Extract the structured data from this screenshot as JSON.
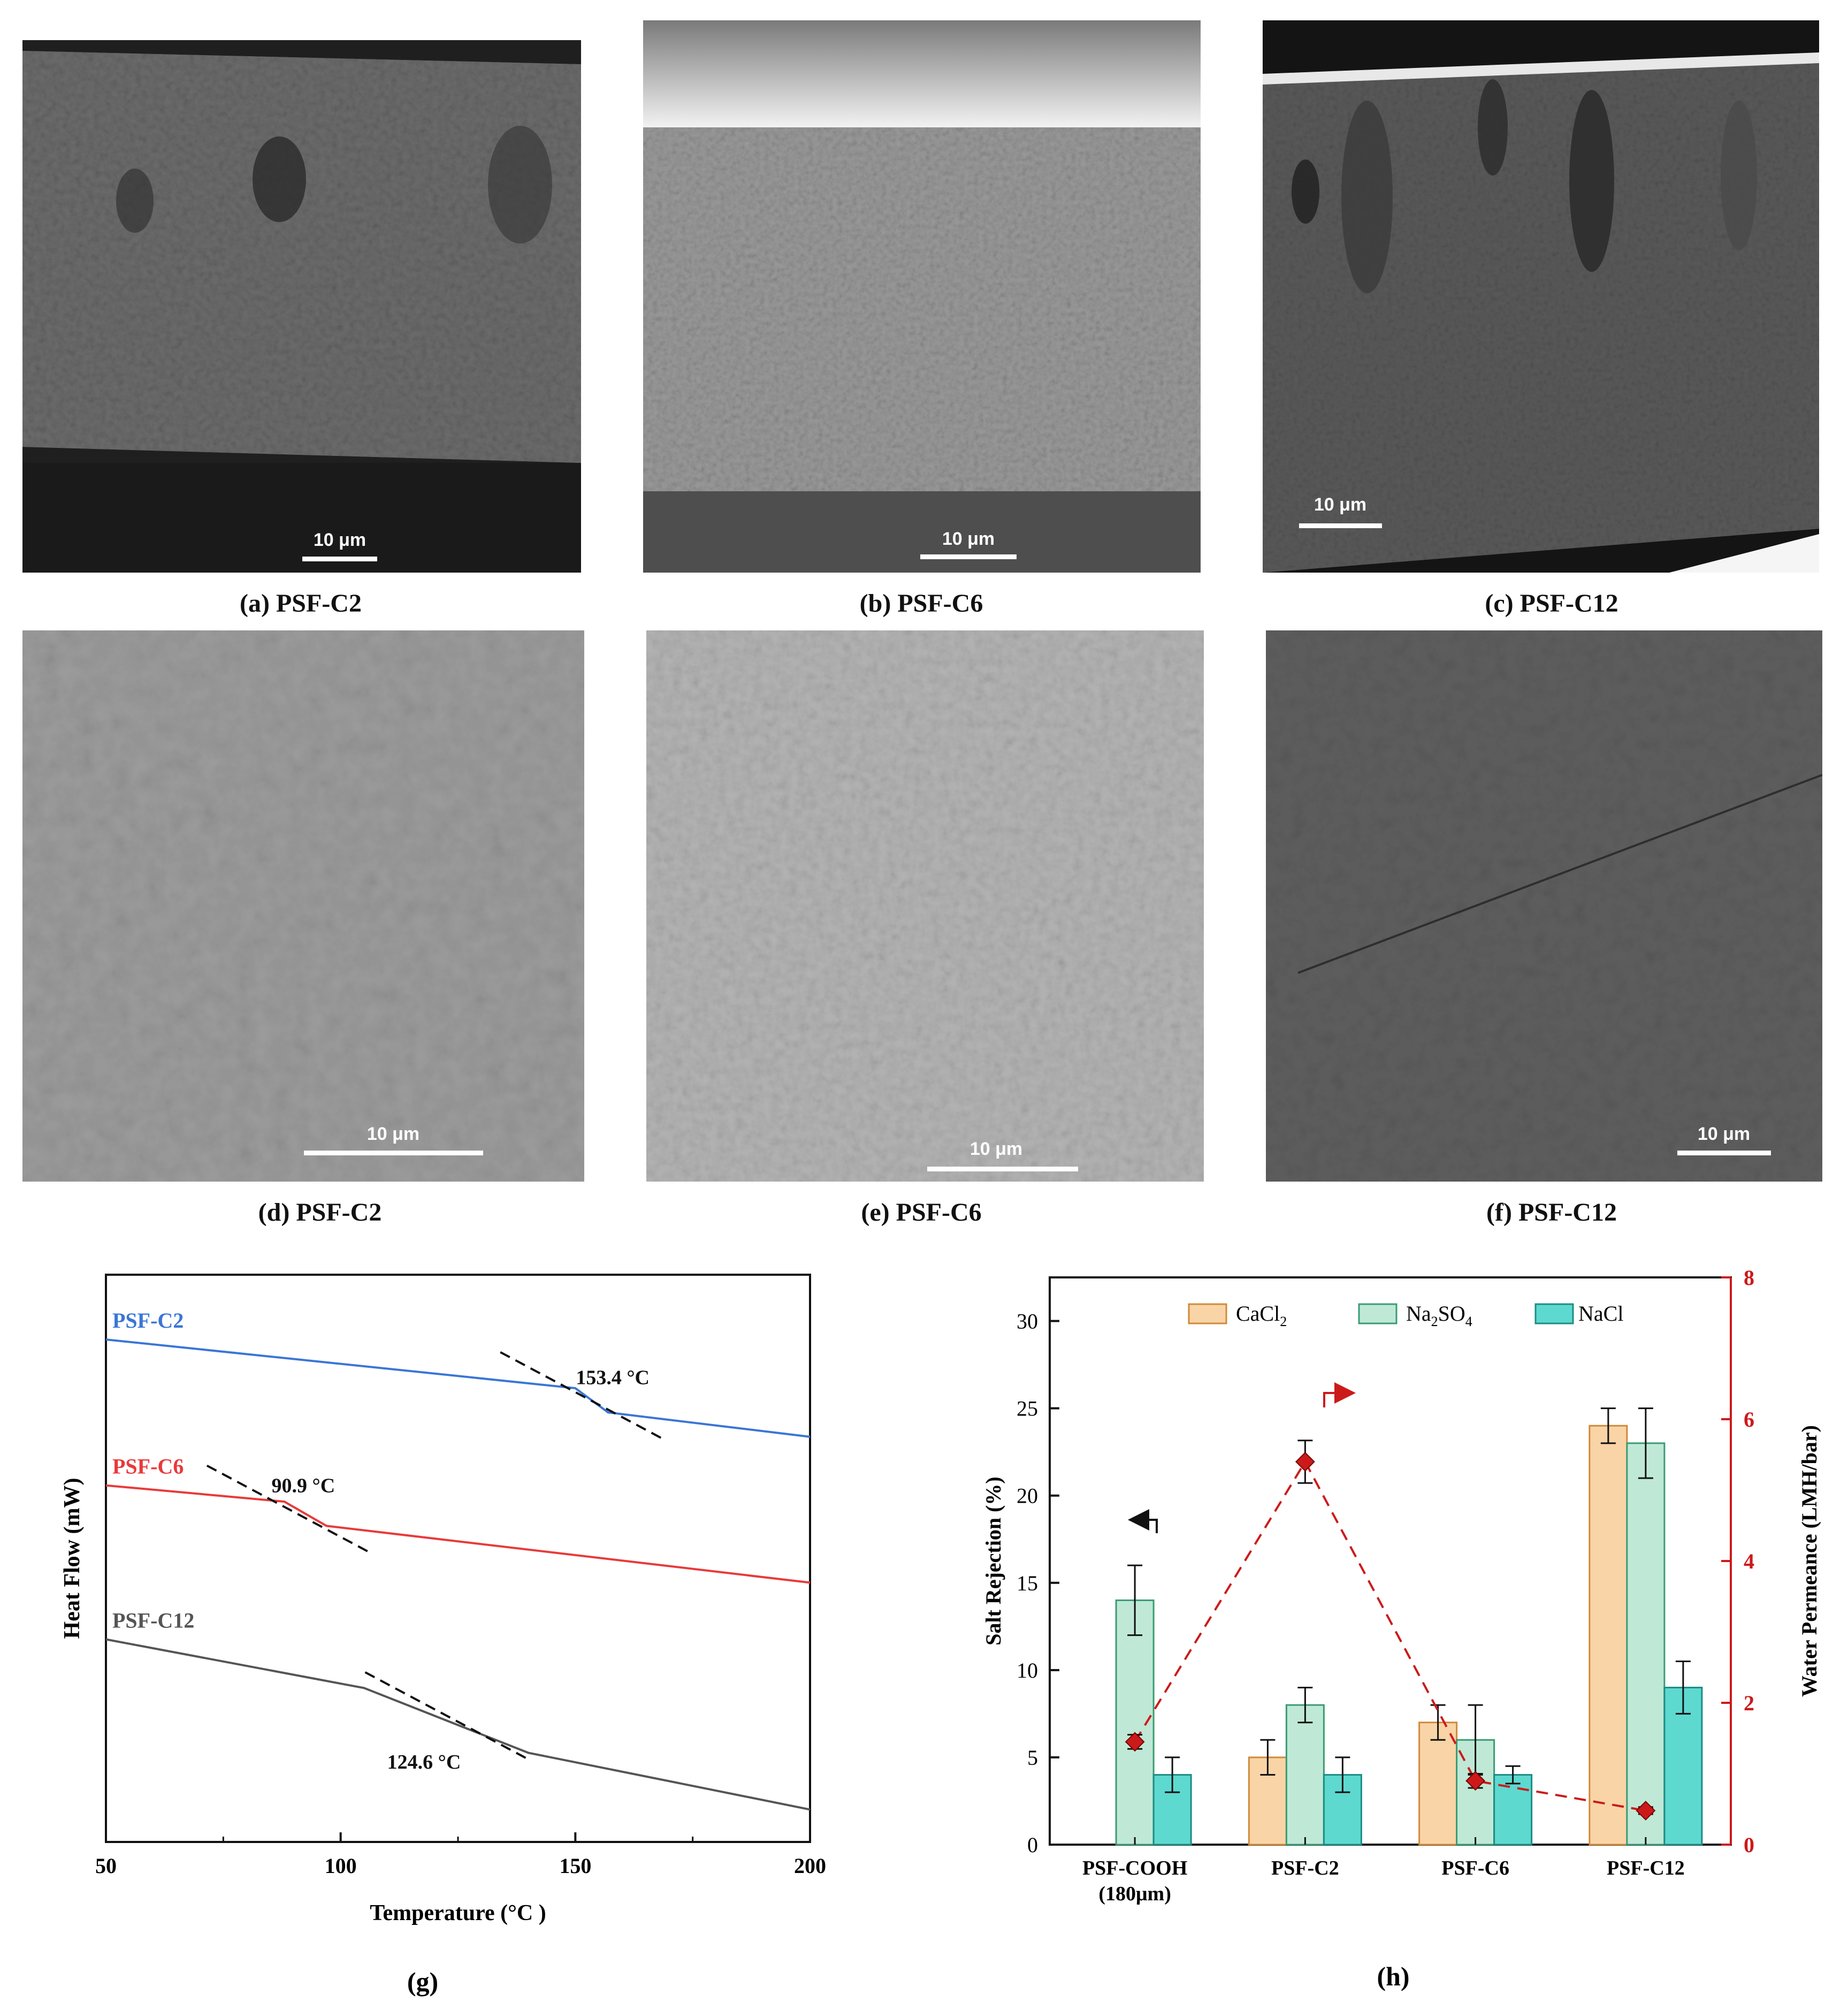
{
  "sem_cross_section": [
    {
      "caption": "(a) PSF-C2",
      "scale": "10 μm"
    },
    {
      "caption": "(b) PSF-C6",
      "scale": "10 μm"
    },
    {
      "caption": "(c) PSF-C12",
      "scale": "10 μm"
    }
  ],
  "sem_surface": [
    {
      "caption": "(d) PSF-C2",
      "scale": "10 μm"
    },
    {
      "caption": "(e) PSF-C6",
      "scale": "10 μm"
    },
    {
      "caption": "(f) PSF-C12",
      "scale": "10 μm"
    }
  ],
  "chart_data": [
    {
      "panel": "(g)",
      "type": "line",
      "xlabel": "Temperature (°C )",
      "ylabel": "Heat Flow (mW)",
      "xlim": [
        50,
        200
      ],
      "xticks": [
        50,
        100,
        150,
        200
      ],
      "y_ticks_shown": false,
      "series": [
        {
          "name": "PSF-C2",
          "color": "#3a76d6",
          "tg_label": "153.4 °C",
          "tg": 153.4,
          "points": [
            [
              50,
              6.2
            ],
            [
              150,
              5.6
            ],
            [
              157,
              5.3
            ],
            [
              200,
              5.0
            ]
          ]
        },
        {
          "name": "PSF-C6",
          "color": "#e83a3a",
          "tg_label": "90.9 °C",
          "tg": 90.9,
          "points": [
            [
              50,
              4.4
            ],
            [
              88,
              4.2
            ],
            [
              97,
              3.9
            ],
            [
              200,
              3.2
            ]
          ]
        },
        {
          "name": "PSF-C12",
          "color": "#555555",
          "tg_label": "124.6 °C",
          "tg": 124.6,
          "points": [
            [
              50,
              2.5
            ],
            [
              105,
              1.9
            ],
            [
              140,
              1.1
            ],
            [
              200,
              0.4
            ]
          ]
        }
      ]
    },
    {
      "panel": "(h)",
      "type": "bar",
      "categories": [
        "PSF-COOH (180μm)",
        "PSF-C2",
        "PSF-C6",
        "PSF-C12"
      ],
      "ylabel": "Salt Rejection (%)",
      "ylim": [
        0,
        32.5
      ],
      "yticks": [
        0,
        5,
        10,
        15,
        20,
        25,
        30
      ],
      "y2label": "Water Permeance (LMH/bar)",
      "y2lim": [
        0,
        8
      ],
      "y2ticks": [
        0,
        2,
        4,
        6,
        8
      ],
      "legend_placement": "top",
      "series": [
        {
          "name": "CaCl2",
          "color": "#f9d4a6",
          "edge": "#d08a3a",
          "values": [
            null,
            5,
            7,
            24
          ],
          "errors": [
            null,
            1,
            1,
            1
          ]
        },
        {
          "name": "Na2SO4",
          "color": "#bfe9d6",
          "edge": "#3a9c74",
          "values": [
            14,
            8,
            6,
            23
          ],
          "errors": [
            2,
            1,
            2,
            2
          ]
        },
        {
          "name": "NaCl",
          "color": "#5ed9d0",
          "edge": "#1c8c86",
          "values": [
            4,
            4,
            4,
            9
          ],
          "errors": [
            1,
            1,
            0.5,
            1.5
          ]
        }
      ],
      "line_series": {
        "name": "Water Permeance",
        "axis": "right",
        "color": "#cc1a1a",
        "values": [
          1.45,
          5.4,
          0.9,
          0.48
        ],
        "errors": [
          0.1,
          0.3,
          0.1,
          0.05
        ]
      }
    }
  ],
  "legend_parts": {
    "cacl2": {
      "a": "CaCl",
      "sub": "2",
      "b": ""
    },
    "na2so4": {
      "a": "Na",
      "sub": "2",
      "b": "SO",
      "sub2": "4"
    },
    "nacl": {
      "a": "NaCl"
    }
  },
  "captions": {
    "g": "(g)",
    "h": "(h)"
  }
}
